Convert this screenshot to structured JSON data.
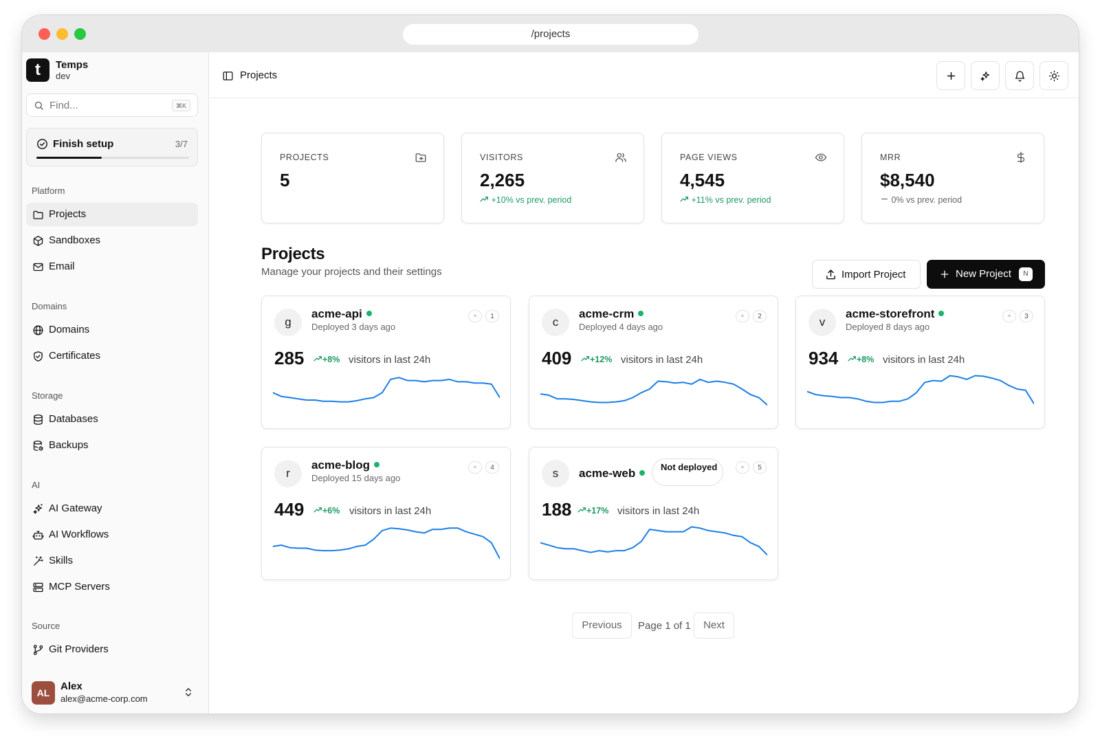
{
  "browser": {
    "url": "/projects"
  },
  "sidebar": {
    "brand": {
      "logo": "t",
      "name": "Temps",
      "env": "dev"
    },
    "search": {
      "placeholder": "Find...",
      "shortcut": "⌘K"
    },
    "setup": {
      "title": "Finish setup",
      "count": "3/7",
      "progress": 0.43
    },
    "groups": [
      {
        "label": "Platform",
        "items": [
          {
            "label": "Projects",
            "icon": "folder-icon",
            "active": true
          },
          {
            "label": "Sandboxes",
            "icon": "box-icon"
          },
          {
            "label": "Email",
            "icon": "mail-icon"
          }
        ]
      },
      {
        "label": "Domains",
        "items": [
          {
            "label": "Domains",
            "icon": "globe-icon"
          },
          {
            "label": "Certificates",
            "icon": "shield-check-icon"
          }
        ]
      },
      {
        "label": "Storage",
        "items": [
          {
            "label": "Databases",
            "icon": "database-icon"
          },
          {
            "label": "Backups",
            "icon": "database-backup-icon"
          }
        ]
      },
      {
        "label": "AI",
        "items": [
          {
            "label": "AI Gateway",
            "icon": "sparkles-icon"
          },
          {
            "label": "AI Workflows",
            "icon": "bot-icon"
          },
          {
            "label": "Skills",
            "icon": "wand-icon"
          },
          {
            "label": "MCP Servers",
            "icon": "server-icon"
          }
        ]
      },
      {
        "label": "Source",
        "items": [
          {
            "label": "Git Providers",
            "icon": "git-branch-icon"
          }
        ]
      }
    ],
    "user": {
      "initials": "AL",
      "name": "Alex",
      "email": "alex@acme-corp.com"
    }
  },
  "header": {
    "breadcrumb": "Projects"
  },
  "stats": [
    {
      "label": "PROJECTS",
      "value": "5",
      "change": "",
      "icon": "folder-git-icon"
    },
    {
      "label": "VISITORS",
      "value": "2,265",
      "change": "+10% vs prev. period",
      "trend": "up",
      "icon": "users-icon"
    },
    {
      "label": "PAGE VIEWS",
      "value": "4,545",
      "change": "+11% vs prev. period",
      "trend": "up",
      "icon": "eye-icon"
    },
    {
      "label": "MRR",
      "value": "$8,540",
      "change": "0% vs prev. period",
      "trend": "flat",
      "icon": "dollar-icon"
    }
  ],
  "section": {
    "title": "Projects",
    "subtitle": "Manage your projects and their settings",
    "import_label": "Import Project",
    "new_label": "New Project",
    "new_shortcut": "N"
  },
  "projects": [
    {
      "initial": "g",
      "name": "acme-api",
      "status": "Deployed 3 days ago",
      "deployed": true,
      "index": "1",
      "visitors": "285",
      "trend": "+8%",
      "visitors_label": "visitors in last 24h",
      "spark": [
        38,
        32,
        30,
        28,
        26,
        26,
        24,
        24,
        23,
        23,
        25,
        28,
        30,
        38,
        60,
        63,
        58,
        58,
        56,
        58,
        58,
        60,
        56,
        56,
        54,
        54,
        52,
        30
      ]
    },
    {
      "initial": "c",
      "name": "acme-crm",
      "status": "Deployed 4 days ago",
      "deployed": true,
      "index": "2",
      "visitors": "409",
      "trend": "+12%",
      "visitors_label": "visitors in last 24h",
      "spark": [
        36,
        34,
        28,
        28,
        27,
        25,
        23,
        22,
        22,
        23,
        25,
        30,
        38,
        44,
        57,
        56,
        54,
        55,
        52,
        60,
        55,
        57,
        55,
        52,
        44,
        35,
        30,
        18
      ]
    },
    {
      "initial": "v",
      "name": "acme-storefront",
      "status": "Deployed 8 days ago",
      "deployed": true,
      "index": "3",
      "visitors": "934",
      "trend": "+8%",
      "visitors_label": "visitors in last 24h",
      "spark": [
        40,
        35,
        33,
        32,
        30,
        30,
        28,
        24,
        22,
        22,
        24,
        24,
        28,
        38,
        55,
        58,
        57,
        66,
        64,
        60,
        66,
        65,
        62,
        58,
        50,
        44,
        42,
        20
      ]
    },
    {
      "initial": "r",
      "name": "acme-blog",
      "status": "Deployed 15 days ago",
      "deployed": true,
      "index": "4",
      "visitors": "449",
      "trend": "+6%",
      "visitors_label": "visitors in last 24h",
      "spark": [
        34,
        36,
        32,
        31,
        31,
        28,
        27,
        27,
        28,
        30,
        34,
        36,
        46,
        60,
        64,
        63,
        61,
        58,
        56,
        62,
        62,
        64,
        64,
        58,
        54,
        50,
        40,
        14
      ]
    },
    {
      "initial": "s",
      "name": "acme-web",
      "status": "Not deployed",
      "deployed": false,
      "index": "5",
      "visitors": "188",
      "trend": "+17%",
      "visitors_label": "visitors in last 24h",
      "spark": [
        40,
        36,
        32,
        30,
        30,
        27,
        24,
        27,
        25,
        27,
        27,
        32,
        42,
        62,
        60,
        58,
        58,
        58,
        66,
        64,
        60,
        58,
        56,
        52,
        50,
        40,
        34,
        20
      ]
    }
  ],
  "pagination": {
    "previous": "Previous",
    "page_text": "Page 1 of 1",
    "next": "Next"
  },
  "colors": {
    "accent": "#1a7fe6",
    "positive": "#1d9a63",
    "status_dot": "#19b36b",
    "primary_button": "#0d0d0d"
  }
}
